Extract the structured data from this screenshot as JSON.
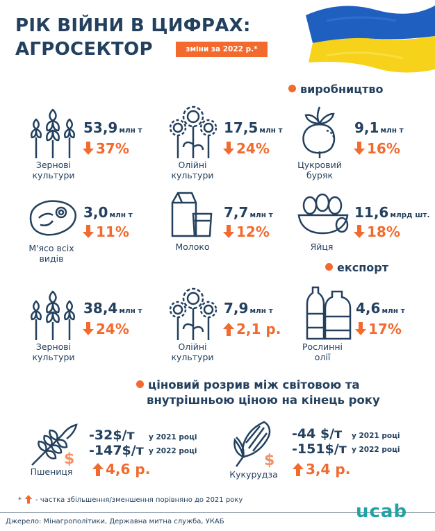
{
  "title_line1": "РІК ВІЙНИ В ЦИФРАХ:",
  "title_line2": "АГРОСЕКТОР",
  "badge": "зміни за 2022 р.*",
  "sections": {
    "production": "виробництво",
    "export": "експорт",
    "price_gap_line1": "ціновий розрив між світовою та",
    "price_gap_line2": "внутрішньою ціною на кінець року"
  },
  "production": [
    {
      "value": "53,9",
      "unit": "млн т",
      "change": "37%",
      "direction": "down",
      "label1": "Зернові",
      "label2": "культури",
      "icon": "wheat-icon"
    },
    {
      "value": "17,5",
      "unit": "млн т",
      "change": "24%",
      "direction": "down",
      "label1": "Олійні",
      "label2": "культури",
      "icon": "sunflower-icon"
    },
    {
      "value": "9,1",
      "unit": "млн т",
      "change": "16%",
      "direction": "down",
      "label1": "Цукровий",
      "label2": "буряк",
      "icon": "beet-icon"
    },
    {
      "value": "3,0",
      "unit": "млн т",
      "change": "11%",
      "direction": "down",
      "label1": "М'ясо всіх",
      "label2": "видів",
      "icon": "meat-icon"
    },
    {
      "value": "7,7",
      "unit": "млн т",
      "change": "12%",
      "direction": "down",
      "label1": "Молоко",
      "label2": "",
      "icon": "milk-icon"
    },
    {
      "value": "11,6",
      "unit": "млрд шт.",
      "change": "18%",
      "direction": "down",
      "label1": "Яйця",
      "label2": "",
      "icon": "eggs-icon"
    }
  ],
  "export": [
    {
      "value": "38,4",
      "unit": "млн т",
      "change": "24%",
      "direction": "down",
      "label1": "Зернові",
      "label2": "культури",
      "icon": "wheat-icon"
    },
    {
      "value": "7,9",
      "unit": "млн т",
      "change": "2,1 р.",
      "direction": "up",
      "label1": "Олійні",
      "label2": "культури",
      "icon": "sunflower-icon"
    },
    {
      "value": "4,6",
      "unit": "млн т",
      "change": "17%",
      "direction": "down",
      "label1": "Рослинні",
      "label2": "олії",
      "icon": "oil-bottles-icon"
    }
  ],
  "prices": [
    {
      "label": "Пшениця",
      "p2021": "-32$/т",
      "p2021_label": "у 2021 році",
      "p2022": "-147$/т",
      "p2022_label": "у 2022 році",
      "change": "4,6 р.",
      "direction": "up",
      "icon": "wheat-dollar-icon"
    },
    {
      "label": "Кукурудза",
      "p2021": "-44 $/т",
      "p2021_label": "у 2021 році",
      "p2022": "-151$/т",
      "p2022_label": "у 2022 році",
      "change": "3,4 р.",
      "direction": "up",
      "icon": "corn-dollar-icon"
    }
  ],
  "footnote": "- частка збільшення/зменшення порівняно до 2021 року",
  "footnote_mark": "*",
  "source": "Джерело: Мінагрополітики, Державна митна служба, УКАБ",
  "logo": "ucab",
  "colors": {
    "navy": "#23405e",
    "orange": "#f26a2e",
    "teal": "#1fa3a4",
    "flag_blue": "#1f5fbf",
    "flag_yellow": "#f6d21a"
  }
}
